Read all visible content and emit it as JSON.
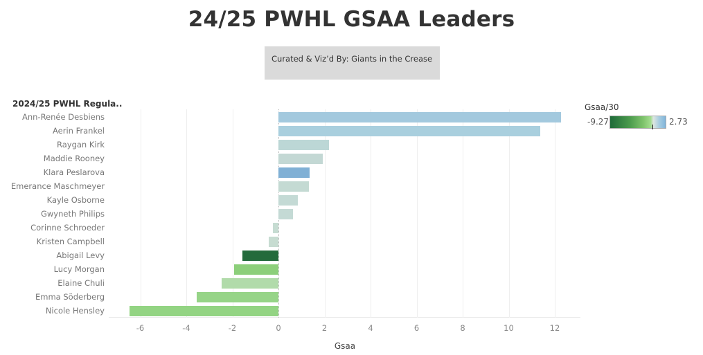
{
  "header": {
    "title": "24/25 PWHL GSAA Leaders",
    "credit": "Curated & Viz’d By: Giants in the Crease"
  },
  "legend": {
    "title": "Gsaa/30",
    "min": "-9.27",
    "max": "2.73"
  },
  "chart_data": {
    "type": "bar",
    "orientation": "horizontal",
    "title": "24/25 PWHL GSAA Leaders",
    "subtitle": "Curated & Viz’d By: Giants in the Crease",
    "row_header": "2024/25 PWHL Regula..",
    "xlabel": "Gsaa",
    "ylabel": "",
    "xlim": [
      -7.4,
      13.1
    ],
    "x_ticks": [
      "-6",
      "-4",
      "-2",
      "0",
      "2",
      "4",
      "6",
      "8",
      "10",
      "12"
    ],
    "grid": true,
    "color_legend": {
      "title": "Gsaa/30",
      "min": -9.27,
      "max": 2.73,
      "position": "top-right"
    },
    "categories": [
      "Ann-Renée Desbiens",
      "Aerin Frankel",
      "Raygan Kirk",
      "Maddie Rooney",
      "Klara Peslarova",
      "Emerance Maschmeyer",
      "Kayle Osborne",
      "Gwyneth Philips",
      "Corinne Schroeder",
      "Kristen Campbell",
      "Abigail Levy",
      "Lucy Morgan",
      "Elaine Chuli",
      "Emma Söderberg",
      "Nicole Hensley"
    ],
    "values": [
      12.26,
      11.36,
      2.2,
      1.93,
      1.36,
      1.32,
      0.84,
      0.63,
      -0.25,
      -0.43,
      -1.57,
      -1.93,
      -2.47,
      -3.55,
      -6.46
    ],
    "colors": [
      "#a3c9de",
      "#a9cfde",
      "#bcd7d6",
      "#c3d8d4",
      "#80b0d5",
      "#c4dad3",
      "#c4dad5",
      "#c4dad5",
      "#c6dcd2",
      "#c7dcd1",
      "#236b3c",
      "#8ccf7a",
      "#b1dbaa",
      "#96d487",
      "#93d483"
    ]
  }
}
